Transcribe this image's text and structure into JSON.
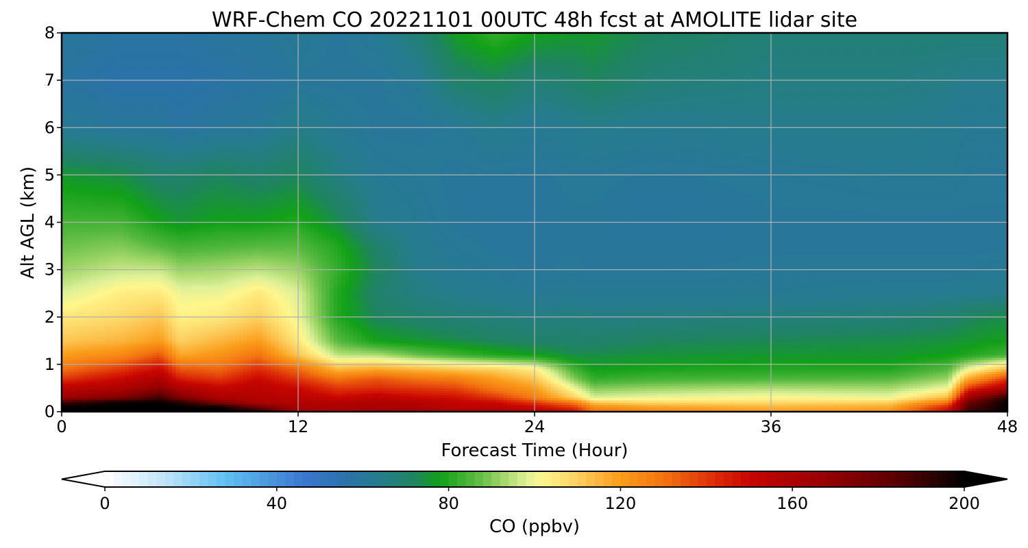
{
  "chart_data": {
    "type": "heatmap",
    "title": "WRF-Chem CO  20221101 00UTC 48h fcst at AMOLITE lidar site",
    "xlabel": "Forecast Time (Hour)",
    "ylabel": "Alt AGL (km)",
    "xlim": [
      0,
      48
    ],
    "ylim": [
      0,
      8
    ],
    "xticks": [
      "0",
      "12",
      "24",
      "36",
      "48"
    ],
    "yticks": [
      "0",
      "1",
      "2",
      "3",
      "4",
      "5",
      "6",
      "7",
      "8"
    ],
    "grid": true,
    "colorbar": {
      "label": "CO  (ppbv)",
      "range": [
        0,
        200
      ],
      "ticks": [
        "0",
        "40",
        "80",
        "120",
        "160",
        "200"
      ],
      "extend": "both",
      "colormap": [
        [
          0,
          "#ffffff"
        ],
        [
          14,
          "#c0e4f8"
        ],
        [
          28,
          "#60c0f0"
        ],
        [
          46,
          "#3c78d0"
        ],
        [
          56,
          "#2a72a8"
        ],
        [
          64,
          "#267c8c"
        ],
        [
          72,
          "#1f8460"
        ],
        [
          78,
          "#12a018"
        ],
        [
          86,
          "#55b840"
        ],
        [
          92,
          "#9bd464"
        ],
        [
          98,
          "#ddf098"
        ],
        [
          102,
          "#fff68c"
        ],
        [
          110,
          "#fcd060"
        ],
        [
          120,
          "#fa9c1a"
        ],
        [
          130,
          "#f37410"
        ],
        [
          142,
          "#dc2a08"
        ],
        [
          150,
          "#c80600"
        ],
        [
          168,
          "#960000"
        ],
        [
          184,
          "#5a0000"
        ],
        [
          196,
          "#1a0000"
        ],
        [
          200,
          "#000000"
        ]
      ]
    },
    "x_hours": [
      0,
      3,
      5,
      6,
      8,
      10,
      12,
      14,
      16,
      18,
      20,
      22,
      24,
      26,
      27,
      30,
      36,
      42,
      45,
      46,
      48
    ],
    "y_km": [
      0,
      0.1,
      0.2,
      0.3,
      0.5,
      0.7,
      0.9,
      1.2,
      1.5,
      2.0,
      2.5,
      3.0,
      3.5,
      4.0,
      5.0,
      6.0,
      7.0,
      8.0
    ],
    "z_ppbv": [
      [
        200,
        200,
        200,
        200,
        200,
        200,
        165,
        160,
        165,
        165,
        160,
        160,
        155,
        150,
        130,
        125,
        120,
        122,
        150,
        190,
        200
      ],
      [
        200,
        200,
        200,
        200,
        200,
        180,
        162,
        160,
        162,
        160,
        155,
        155,
        150,
        140,
        125,
        120,
        116,
        118,
        145,
        185,
        200
      ],
      [
        190,
        200,
        200,
        195,
        175,
        160,
        158,
        158,
        160,
        158,
        152,
        150,
        140,
        128,
        112,
        108,
        108,
        110,
        130,
        180,
        200
      ],
      [
        165,
        175,
        190,
        175,
        160,
        158,
        156,
        150,
        155,
        150,
        148,
        140,
        128,
        110,
        98,
        100,
        102,
        100,
        115,
        165,
        195
      ],
      [
        155,
        160,
        170,
        160,
        152,
        155,
        150,
        140,
        142,
        140,
        138,
        128,
        120,
        100,
        90,
        92,
        94,
        93,
        100,
        140,
        160
      ],
      [
        140,
        150,
        160,
        145,
        140,
        150,
        140,
        130,
        135,
        130,
        128,
        120,
        112,
        90,
        82,
        84,
        85,
        86,
        92,
        118,
        140
      ],
      [
        130,
        140,
        150,
        135,
        132,
        142,
        132,
        115,
        118,
        115,
        112,
        110,
        104,
        84,
        78,
        79,
        80,
        80,
        86,
        100,
        115
      ],
      [
        120,
        125,
        135,
        118,
        122,
        130,
        112,
        95,
        94,
        88,
        84,
        80,
        78,
        74,
        74,
        75,
        76,
        76,
        78,
        80,
        84
      ],
      [
        112,
        115,
        120,
        110,
        115,
        120,
        105,
        86,
        78,
        76,
        74,
        72,
        70,
        70,
        70,
        72,
        73,
        74,
        75,
        76,
        78
      ],
      [
        105,
        108,
        112,
        103,
        105,
        110,
        100,
        80,
        72,
        70,
        68,
        67,
        66,
        67,
        66,
        66,
        67,
        68,
        70,
        72,
        74
      ],
      [
        98,
        104,
        105,
        100,
        100,
        105,
        98,
        80,
        70,
        66,
        64,
        63,
        62,
        62,
        62,
        62,
        62,
        63,
        63,
        64,
        64
      ],
      [
        92,
        96,
        96,
        92,
        93,
        95,
        92,
        82,
        72,
        64,
        62,
        61,
        60,
        61,
        60,
        60,
        61,
        61,
        61,
        61,
        62
      ],
      [
        88,
        90,
        86,
        84,
        85,
        86,
        86,
        80,
        70,
        63,
        61,
        60,
        60,
        60,
        60,
        60,
        60,
        60,
        60,
        60,
        60
      ],
      [
        84,
        84,
        78,
        76,
        78,
        78,
        80,
        74,
        64,
        62,
        60,
        59,
        59,
        60,
        60,
        59,
        60,
        60,
        60,
        60,
        60
      ],
      [
        76,
        74,
        70,
        70,
        72,
        70,
        72,
        66,
        62,
        61,
        60,
        60,
        60,
        61,
        61,
        60,
        61,
        62,
        62,
        61,
        61
      ],
      [
        62,
        60,
        60,
        58,
        60,
        61,
        65,
        62,
        60,
        60,
        61,
        64,
        62,
        63,
        64,
        63,
        64,
        64,
        63,
        62,
        62
      ],
      [
        58,
        56,
        56,
        56,
        57,
        58,
        60,
        60,
        60,
        62,
        70,
        72,
        68,
        70,
        72,
        68,
        66,
        66,
        65,
        64,
        64
      ],
      [
        60,
        58,
        58,
        58,
        59,
        60,
        62,
        60,
        62,
        68,
        77,
        82,
        78,
        76,
        76,
        72,
        68,
        68,
        68,
        68,
        68
      ]
    ]
  }
}
